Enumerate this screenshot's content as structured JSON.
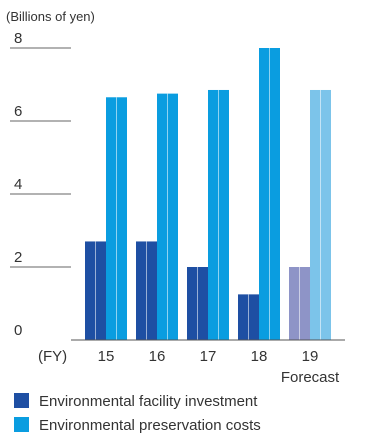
{
  "chart_data": {
    "type": "bar",
    "unit_label": "(Billions of yen)",
    "x_prefix": "(FY)",
    "categories": [
      "15",
      "16",
      "17",
      "18",
      "19"
    ],
    "category_sublabels": [
      "",
      "",
      "",
      "",
      "Forecast"
    ],
    "forecast_index": 4,
    "ylim": [
      0,
      8
    ],
    "yticks": [
      0,
      2,
      4,
      6,
      8
    ],
    "grid": "dashes-at-ticks",
    "legend_placement": "bottom",
    "series": [
      {
        "name": "Environmental facility investment",
        "values": [
          2.7,
          2.7,
          2.0,
          1.25,
          2.0
        ],
        "color": "#1e4fa3",
        "forecast_color": "#8e94c7"
      },
      {
        "name": "Environmental preservation costs",
        "values": [
          6.65,
          6.75,
          6.85,
          8.0,
          6.85
        ],
        "color": "#0a9de0",
        "forecast_color": "#7cc4ea"
      }
    ]
  }
}
